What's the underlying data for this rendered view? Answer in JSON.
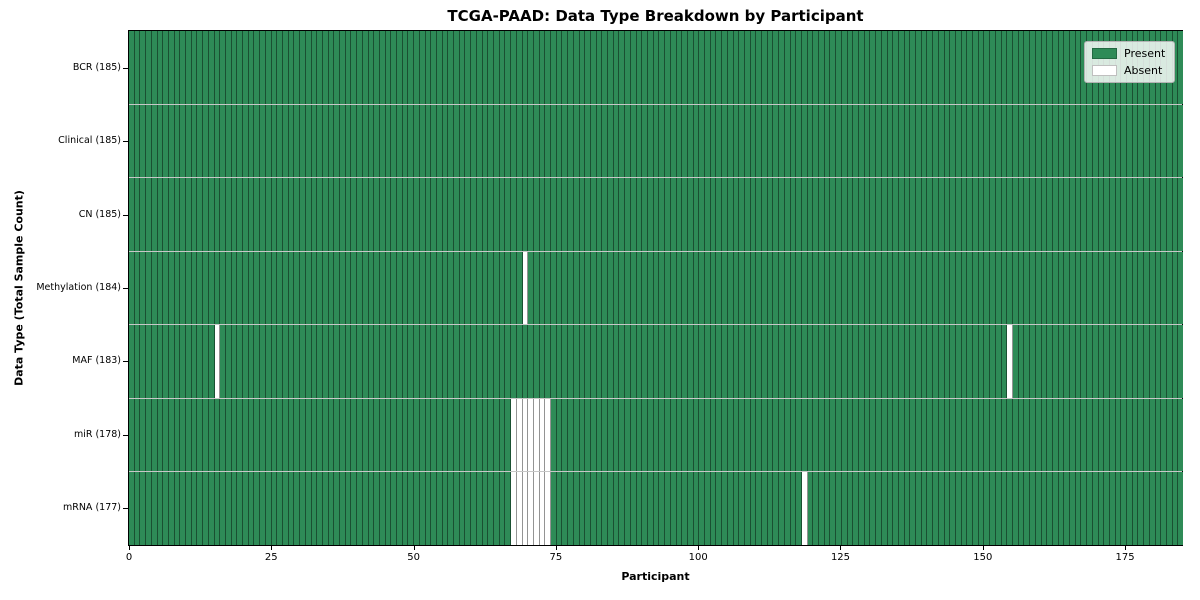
{
  "chart_data": {
    "type": "heatmap",
    "title": "TCGA-PAAD: Data Type Breakdown by Participant",
    "xlabel": "Participant",
    "ylabel": "Data Type (Total Sample Count)",
    "xlim": [
      0,
      185
    ],
    "x_ticks": [
      0,
      25,
      50,
      75,
      100,
      125,
      150,
      175
    ],
    "n_participants": 185,
    "grid": "cell-borders",
    "legend_position": "upper-right",
    "colors": {
      "present": "#2e8b57",
      "absent": "#ffffff",
      "cell_edge": "rgba(0,0,0,0.42)",
      "row_edge": "rgba(0,0,0,0.22)"
    },
    "legend": {
      "items": [
        {
          "label": "Present",
          "key": "present",
          "color": "#2e8b57"
        },
        {
          "label": "Absent",
          "key": "absent",
          "color": "#ffffff"
        }
      ]
    },
    "rows": [
      {
        "label": "BCR (185)",
        "data_type": "BCR",
        "total": 185,
        "absent_participants": []
      },
      {
        "label": "Clinical (185)",
        "data_type": "Clinical",
        "total": 185,
        "absent_participants": []
      },
      {
        "label": "CN (185)",
        "data_type": "CN",
        "total": 185,
        "absent_participants": []
      },
      {
        "label": "Methylation (184)",
        "data_type": "Methylation",
        "total": 184,
        "absent_participants": [
          69
        ]
      },
      {
        "label": "MAF (183)",
        "data_type": "MAF",
        "total": 183,
        "absent_participants": [
          15,
          154
        ]
      },
      {
        "label": "miR (178)",
        "data_type": "miR",
        "total": 178,
        "absent_participants": [
          67,
          68,
          69,
          70,
          71,
          72,
          73
        ]
      },
      {
        "label": "mRNA (177)",
        "data_type": "mRNA",
        "total": 177,
        "absent_participants": [
          67,
          68,
          69,
          70,
          71,
          72,
          73,
          118
        ]
      }
    ]
  }
}
